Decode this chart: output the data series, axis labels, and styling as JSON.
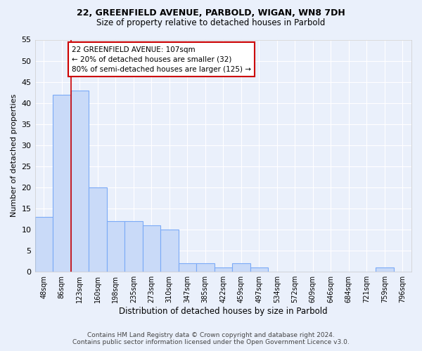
{
  "title1": "22, GREENFIELD AVENUE, PARBOLD, WIGAN, WN8 7DH",
  "title2": "Size of property relative to detached houses in Parbold",
  "xlabel": "Distribution of detached houses by size in Parbold",
  "ylabel": "Number of detached properties",
  "bar_labels": [
    "48sqm",
    "86sqm",
    "123sqm",
    "160sqm",
    "198sqm",
    "235sqm",
    "273sqm",
    "310sqm",
    "347sqm",
    "385sqm",
    "422sqm",
    "459sqm",
    "497sqm",
    "534sqm",
    "572sqm",
    "609sqm",
    "646sqm",
    "684sqm",
    "721sqm",
    "759sqm",
    "796sqm"
  ],
  "bar_values": [
    13,
    42,
    43,
    20,
    12,
    12,
    11,
    10,
    2,
    2,
    1,
    2,
    1,
    0,
    0,
    0,
    0,
    0,
    0,
    1,
    0
  ],
  "bar_color": "#c9daf8",
  "bar_edge_color": "#7baaf7",
  "annotation_line1": "22 GREENFIELD AVENUE: 107sqm",
  "annotation_line2": "← 20% of detached houses are smaller (32)",
  "annotation_line3": "80% of semi-detached houses are larger (125) →",
  "annotation_box_color": "#ffffff",
  "annotation_box_edge": "#cc0000",
  "red_line_x": 1.5,
  "ylim": [
    0,
    55
  ],
  "yticks": [
    0,
    5,
    10,
    15,
    20,
    25,
    30,
    35,
    40,
    45,
    50,
    55
  ],
  "background_color": "#eaf0fb",
  "grid_color": "#ffffff",
  "footer": "Contains HM Land Registry data © Crown copyright and database right 2024.\nContains public sector information licensed under the Open Government Licence v3.0."
}
